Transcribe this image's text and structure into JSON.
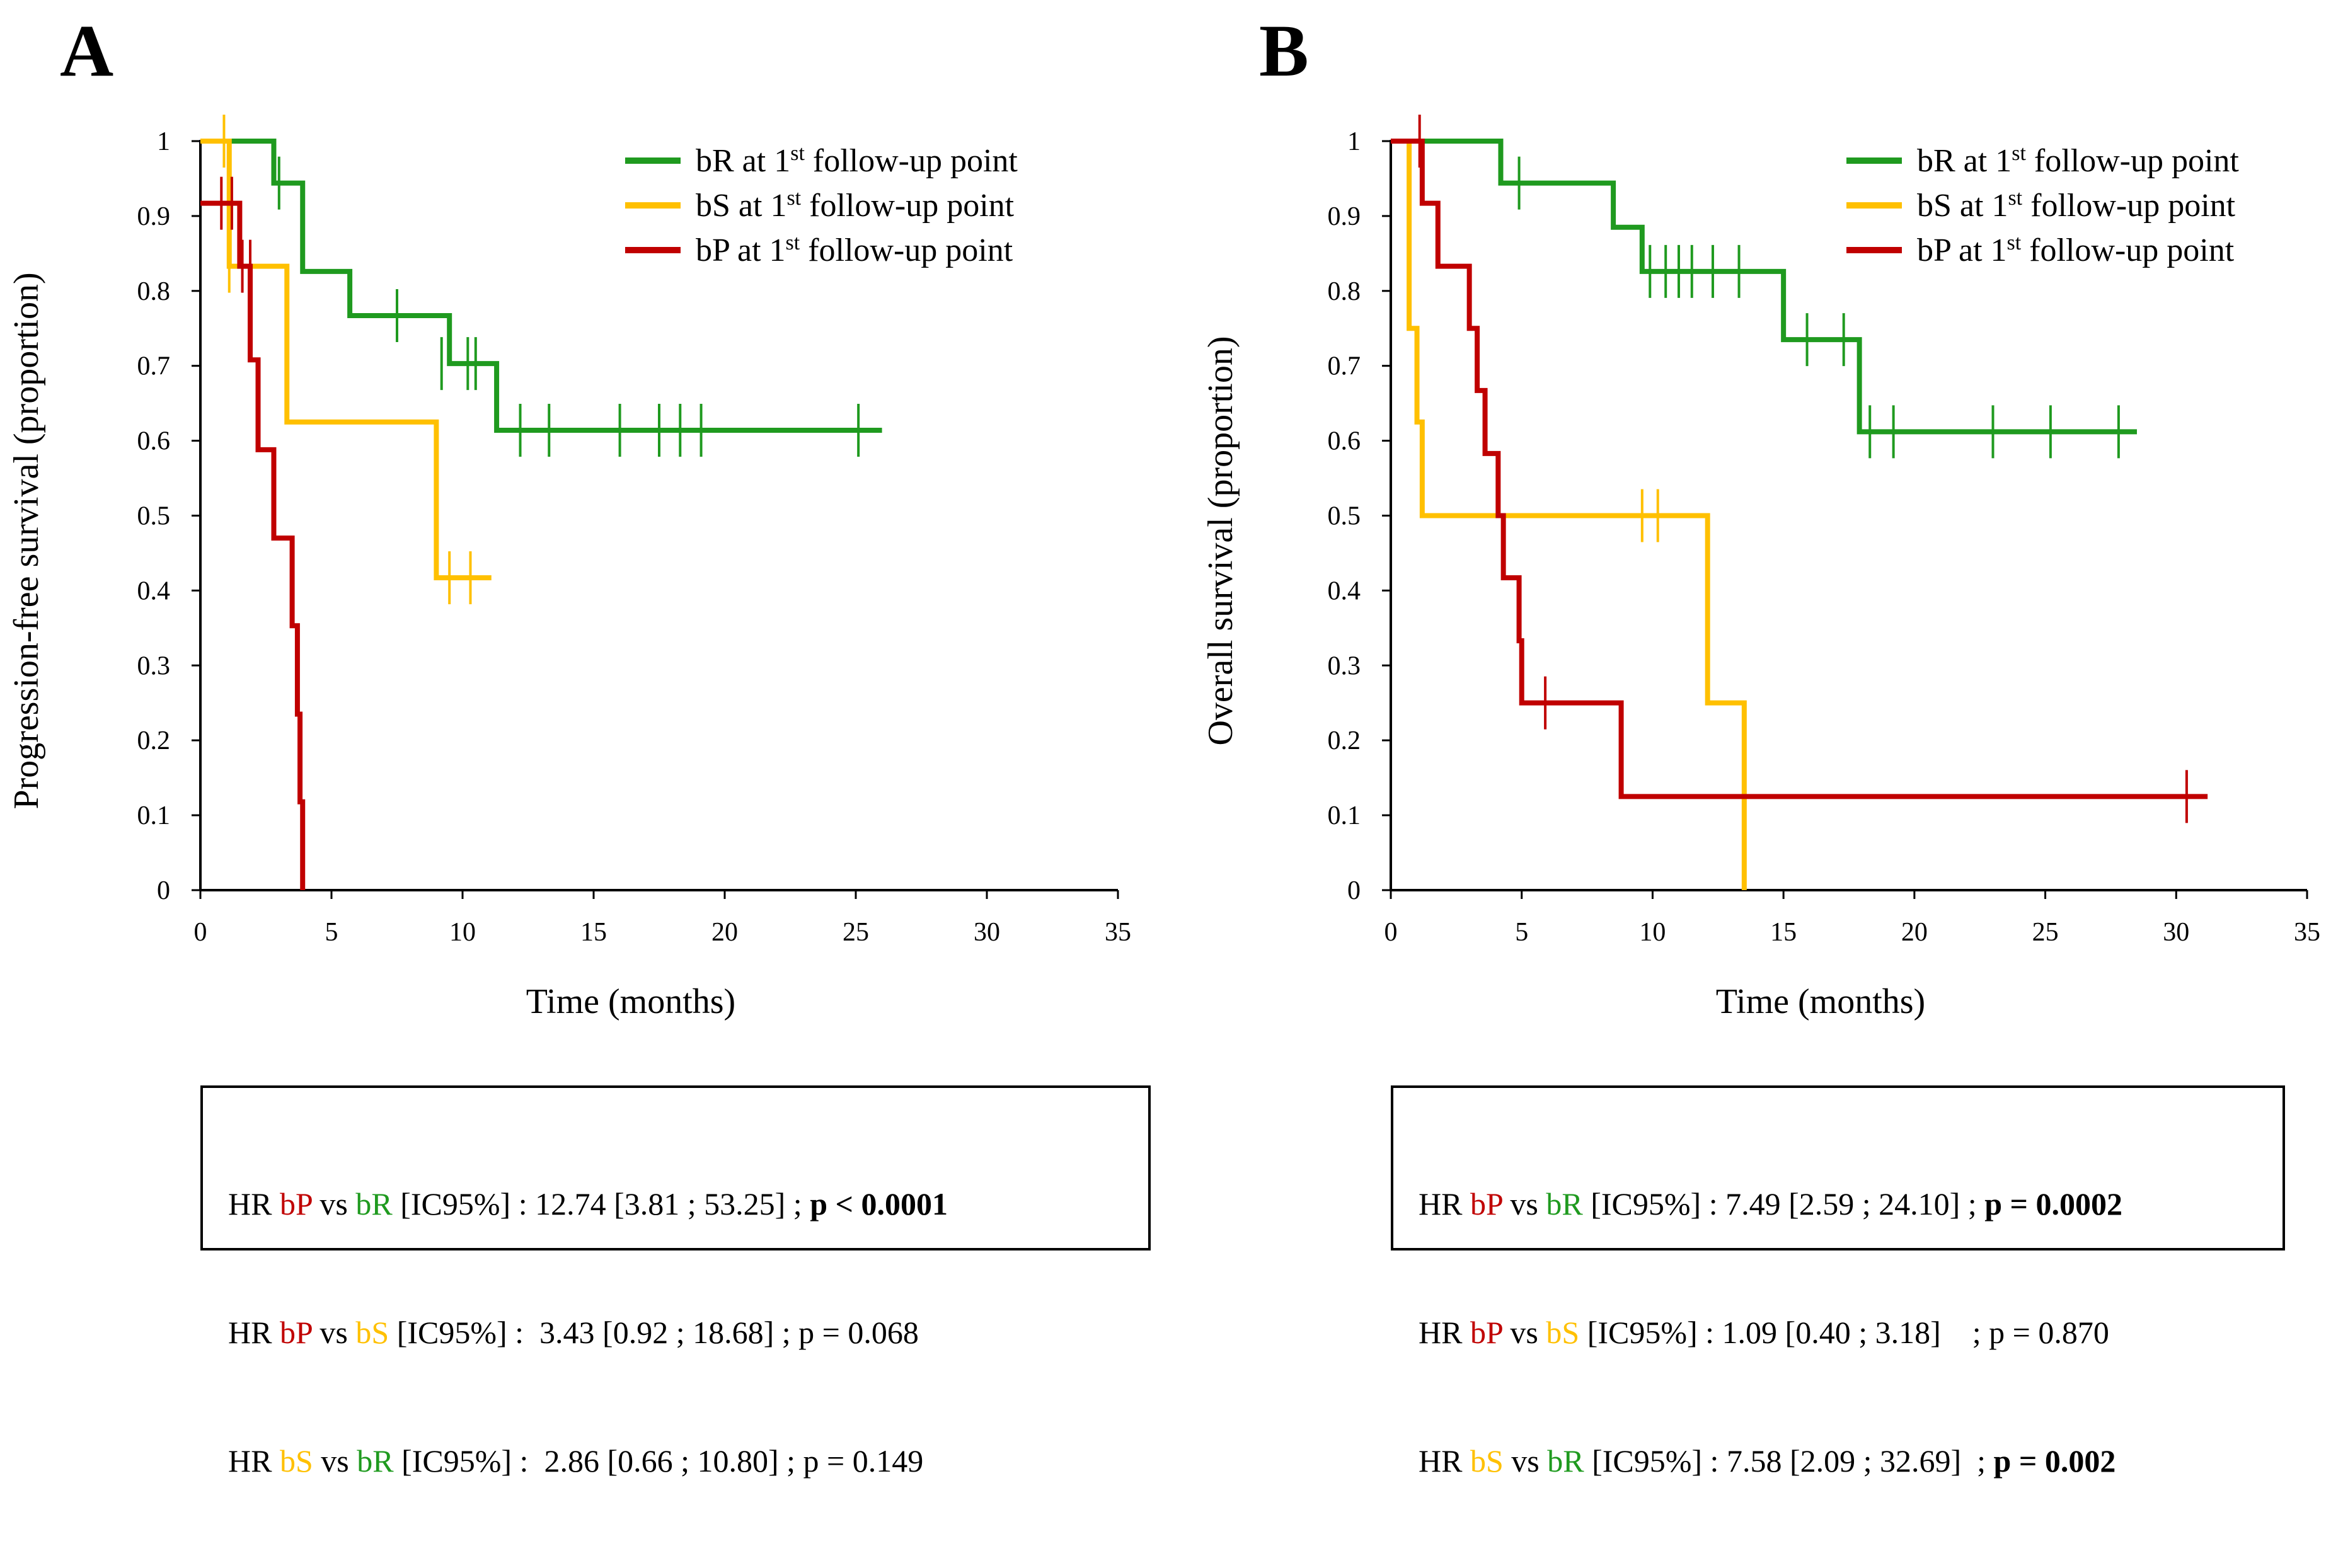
{
  "colors": {
    "bR": "#1f9a1f",
    "bS": "#ffc000",
    "bP": "#c00000",
    "axis": "#000000"
  },
  "chart_data": [
    {
      "type": "line",
      "panel": "A",
      "title": "",
      "xlabel": "Time (months)",
      "ylabel": "Progression-free survival (proportion)",
      "xlim": [
        0,
        35
      ],
      "ylim": [
        0,
        1
      ],
      "x_ticks": [
        "0",
        "5",
        "10",
        "15",
        "20",
        "25",
        "30",
        "35"
      ],
      "y_ticks": [
        "0",
        "0.1",
        "0.2",
        "0.3",
        "0.4",
        "0.5",
        "0.6",
        "0.7",
        "0.8",
        "0.9",
        "1"
      ],
      "legend": {
        "placement": "top-right",
        "entries": [
          {
            "key": "bR",
            "prefix": "bR at 1",
            "sup": "st",
            "suffix": " follow-up point"
          },
          {
            "key": "bS",
            "prefix": "bS at 1",
            "sup": "st",
            "suffix": " follow-up point"
          },
          {
            "key": "bP",
            "prefix": "bP at 1",
            "sup": "st",
            "suffix": " follow-up point"
          }
        ]
      },
      "series": [
        {
          "name": "bR",
          "color_key": "bR",
          "end": 26,
          "steps": [
            [
              0,
              1
            ],
            [
              2.8,
              0.944
            ],
            [
              3.9,
              0.826
            ],
            [
              5.7,
              0.767
            ],
            [
              9.5,
              0.703
            ],
            [
              11.3,
              0.614
            ]
          ],
          "censors": [
            [
              3,
              0.944
            ],
            [
              7.5,
              0.767
            ],
            [
              9.2,
              0.703
            ],
            [
              10.2,
              0.703
            ],
            [
              10.5,
              0.703
            ],
            [
              12.2,
              0.614
            ],
            [
              13.3,
              0.614
            ],
            [
              16,
              0.614
            ],
            [
              17.5,
              0.614
            ],
            [
              18.3,
              0.614
            ],
            [
              19.1,
              0.614
            ],
            [
              25.1,
              0.614
            ]
          ]
        },
        {
          "name": "bS",
          "color_key": "bS",
          "end": 11.1,
          "steps": [
            [
              0,
              1
            ],
            [
              1.1,
              0.833
            ],
            [
              3.3,
              0.625
            ],
            [
              9,
              0.417
            ]
          ],
          "censors": [
            [
              0.9,
              1
            ],
            [
              1.1,
              0.833
            ],
            [
              9.5,
              0.417
            ],
            [
              10.3,
              0.417
            ]
          ]
        },
        {
          "name": "bP",
          "color_key": "bP",
          "end": 3.9,
          "steps": [
            [
              0,
              0.917
            ],
            [
              1.5,
              0.833
            ],
            [
              1.9,
              0.708
            ],
            [
              2.2,
              0.588
            ],
            [
              2.8,
              0.47
            ],
            [
              3.5,
              0.353
            ],
            [
              3.7,
              0.235
            ],
            [
              3.8,
              0.118
            ],
            [
              3.9,
              0
            ]
          ],
          "censors": [
            [
              0.8,
              0.917
            ],
            [
              1.2,
              0.917
            ],
            [
              1.6,
              0.833
            ],
            [
              1.9,
              0.833
            ]
          ]
        }
      ]
    },
    {
      "type": "line",
      "panel": "B",
      "title": "",
      "xlabel": "Time (months)",
      "ylabel": "Overall survival (proportion)",
      "xlim": [
        0,
        35
      ],
      "ylim": [
        0,
        1
      ],
      "x_ticks": [
        "0",
        "5",
        "10",
        "15",
        "20",
        "25",
        "30",
        "35"
      ],
      "y_ticks": [
        "0",
        "0.1",
        "0.2",
        "0.3",
        "0.4",
        "0.5",
        "0.6",
        "0.7",
        "0.8",
        "0.9",
        "1"
      ],
      "legend": {
        "placement": "top-right",
        "entries": [
          {
            "key": "bR",
            "prefix": "bR at 1",
            "sup": "st",
            "suffix": " follow-up point"
          },
          {
            "key": "bS",
            "prefix": "bS at 1",
            "sup": "st",
            "suffix": " follow-up point"
          },
          {
            "key": "bP",
            "prefix": "bP at 1",
            "sup": "st",
            "suffix": " follow-up point"
          }
        ]
      },
      "series": [
        {
          "name": "bR",
          "color_key": "bR",
          "end": 28.5,
          "steps": [
            [
              0,
              1
            ],
            [
              4.2,
              0.944
            ],
            [
              8.5,
              0.885
            ],
            [
              9.6,
              0.826
            ],
            [
              15,
              0.735
            ],
            [
              17.9,
              0.612
            ]
          ],
          "censors": [
            [
              4.9,
              0.944
            ],
            [
              9.9,
              0.826
            ],
            [
              10.5,
              0.826
            ],
            [
              11,
              0.826
            ],
            [
              11.5,
              0.826
            ],
            [
              12.3,
              0.826
            ],
            [
              13.3,
              0.826
            ],
            [
              15.9,
              0.735
            ],
            [
              17.3,
              0.735
            ],
            [
              18.3,
              0.612
            ],
            [
              19.2,
              0.612
            ],
            [
              23,
              0.612
            ],
            [
              25.2,
              0.612
            ],
            [
              27.8,
              0.612
            ]
          ]
        },
        {
          "name": "bS",
          "color_key": "bS",
          "end": 13.5,
          "steps": [
            [
              0,
              1
            ],
            [
              0.7,
              0.75
            ],
            [
              1,
              0.625
            ],
            [
              1.2,
              0.5
            ],
            [
              12.1,
              0.25
            ],
            [
              13.5,
              0
            ]
          ],
          "censors": [
            [
              9.6,
              0.5
            ],
            [
              10.2,
              0.5
            ]
          ]
        },
        {
          "name": "bP",
          "color_key": "bP",
          "end": 31.2,
          "steps": [
            [
              0,
              1
            ],
            [
              1.2,
              0.917
            ],
            [
              1.8,
              0.833
            ],
            [
              3,
              0.75
            ],
            [
              3.3,
              0.667
            ],
            [
              3.6,
              0.583
            ],
            [
              4.1,
              0.5
            ],
            [
              4.3,
              0.417
            ],
            [
              4.9,
              0.333
            ],
            [
              5,
              0.25
            ],
            [
              8.8,
              0.125
            ]
          ],
          "censors": [
            [
              1.1,
              1
            ],
            [
              5.9,
              0.25
            ],
            [
              30.4,
              0.125
            ]
          ]
        }
      ]
    }
  ],
  "panels": [
    {
      "label": "A"
    },
    {
      "label": "B"
    }
  ],
  "hr_boxes": [
    {
      "lines": [
        [
          {
            "t": "HR "
          },
          {
            "t": "bP",
            "c": "bP"
          },
          {
            "t": " vs "
          },
          {
            "t": "bR",
            "c": "bR"
          },
          {
            "t": " [IC95%] : 12.74 [3.81 ; 53.25] ; "
          },
          {
            "t": "p < 0.0001",
            "b": true
          }
        ],
        [
          {
            "t": "HR "
          },
          {
            "t": "bP",
            "c": "bP"
          },
          {
            "t": " vs "
          },
          {
            "t": "bS",
            "c": "bS"
          },
          {
            "t": " [IC95%] :  3.43 [0.92 ; 18.68] ; p = 0.068"
          }
        ],
        [
          {
            "t": "HR "
          },
          {
            "t": "bS",
            "c": "bS"
          },
          {
            "t": " vs "
          },
          {
            "t": "bR",
            "c": "bR"
          },
          {
            "t": " [IC95%] :  2.86 [0.66 ; 10.80] ; p = 0.149"
          }
        ]
      ]
    },
    {
      "lines": [
        [
          {
            "t": "HR "
          },
          {
            "t": "bP",
            "c": "bP"
          },
          {
            "t": " vs "
          },
          {
            "t": "bR",
            "c": "bR"
          },
          {
            "t": " [IC95%] : 7.49 [2.59 ; 24.10] ; "
          },
          {
            "t": "p = 0.0002",
            "b": true
          }
        ],
        [
          {
            "t": "HR "
          },
          {
            "t": "bP",
            "c": "bP"
          },
          {
            "t": " vs "
          },
          {
            "t": "bS",
            "c": "bS"
          },
          {
            "t": " [IC95%] : 1.09 [0.40 ; 3.18]    ; p = 0.870"
          }
        ],
        [
          {
            "t": "HR "
          },
          {
            "t": "bS",
            "c": "bS"
          },
          {
            "t": " vs "
          },
          {
            "t": "bR",
            "c": "bR"
          },
          {
            "t": " [IC95%] : 7.58 [2.09 ; 32.69]  ; "
          },
          {
            "t": "p = 0.002",
            "b": true
          }
        ]
      ]
    }
  ]
}
